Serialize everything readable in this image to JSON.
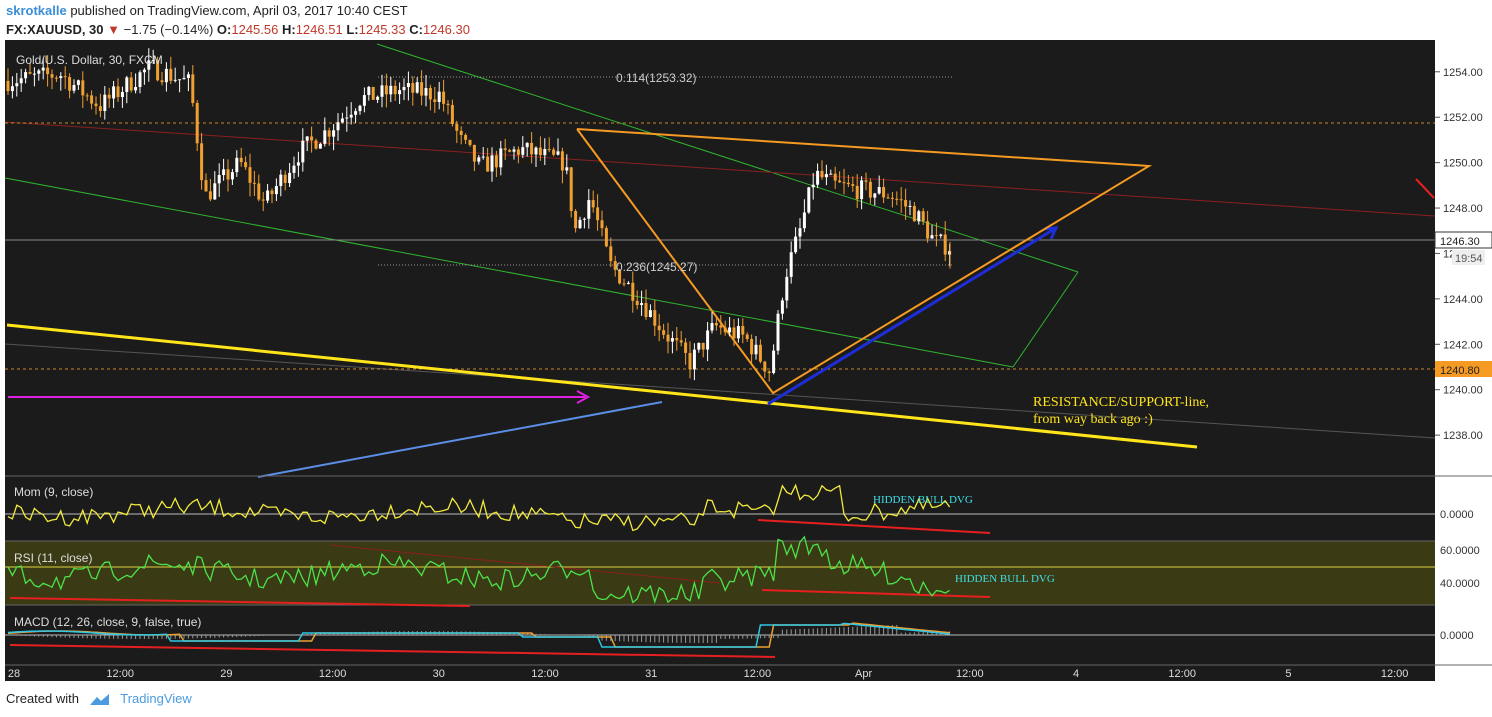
{
  "header": {
    "author": "skrotkalle",
    "published_text": "published on TradingView.com, April 03, 2017 10:40 CEST",
    "symbol": "FX:XAUUSD, 30",
    "change_arrow": "▼",
    "change": "−1.75 (−0.14%)",
    "open_label": "O:",
    "open": "1245.56",
    "high_label": "H:",
    "high": "1246.51",
    "low_label": "L:",
    "low": "1245.33",
    "close_label": "C:",
    "close": "1246.30"
  },
  "footer": {
    "created_with": "Created with",
    "brand": "TradingView",
    "logo_icon": "tradingview-logo-icon"
  },
  "chart_data": {
    "type": "candlestick",
    "title": "Gold/U.S. Dollar, 30, FXCM",
    "price_axis": {
      "ticks": [
        "1254.00",
        "1252.00",
        "1250.00",
        "1248.00",
        "1246.00",
        "1244.00",
        "1242.00",
        "1240.00",
        "1238.00"
      ],
      "range": [
        1236.2,
        1255.4
      ],
      "current_price": "1246.30",
      "countdown": "19:54",
      "marked_level": "1240.80"
    },
    "time_axis": {
      "ticks": [
        "28",
        "12:00",
        "29",
        "12:00",
        "30",
        "12:00",
        "31",
        "12:00",
        "Apr",
        "12:00",
        "4",
        "12:00",
        "5",
        "12:00"
      ]
    },
    "annotations": {
      "fib_upper": "0.114(1253.32)",
      "fib_lower": "0.236(1245.27)",
      "note_line1": "RESISTANCE/SUPPORT-line,",
      "note_line2": "from way back ago :)",
      "hidden_bull_mom": "HIDDEN BULL DVG",
      "hidden_bull_rsi": "HIDDEN BULL DVG"
    },
    "indicators": {
      "mom": {
        "label": "Mom (9, close)",
        "ticks": [
          "0.0000"
        ]
      },
      "rsi": {
        "label": "RSI (11, close)",
        "ticks": [
          "60.0000",
          "40.0000"
        ]
      },
      "macd": {
        "label": "MACD (12, 26, close, 9, false, true)",
        "ticks": [
          "0.0000"
        ]
      }
    },
    "colors": {
      "background": "#1b1b1b",
      "candle_up": "#ffffff",
      "candle_down": "#f0a030",
      "triangle": "#f59a23",
      "support_line": "#ffe51a",
      "green_channel": "#2fb52f",
      "red_line": "#8a2020",
      "momentum": "#f2ea3b",
      "rsi": "#4be34b",
      "macd": "#2ec8e6",
      "signal": "#f0a030",
      "divergence": "#e62020",
      "annotation_text": "#ffe51a",
      "dvg_text": "#3ee0e8"
    }
  }
}
